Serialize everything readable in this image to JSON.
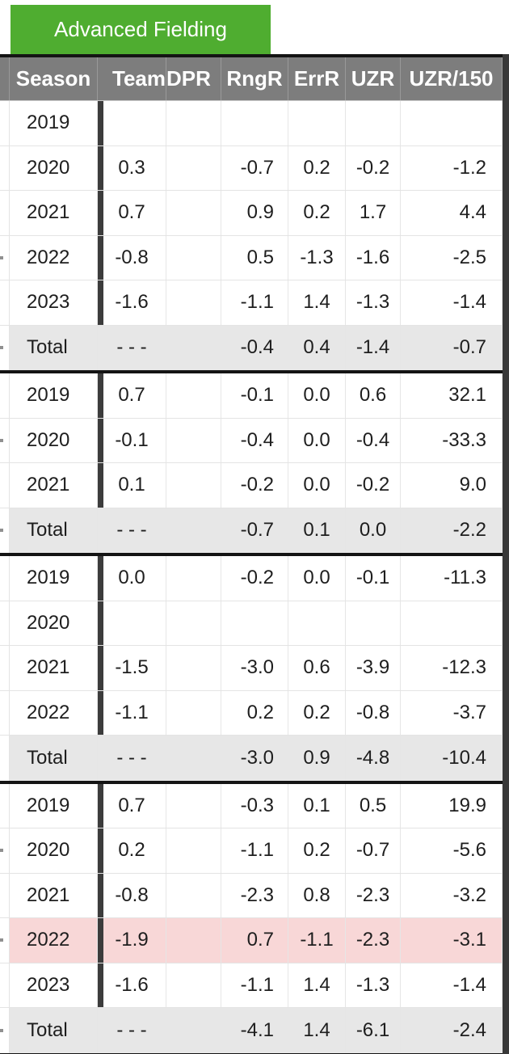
{
  "tab": {
    "label": "Advanced Fielding"
  },
  "table": {
    "columns": [
      {
        "key": "sliver",
        "label": ""
      },
      {
        "key": "season",
        "label": "Season"
      },
      {
        "key": "team",
        "label": "Team"
      },
      {
        "key": "dpr",
        "label": "DPR"
      },
      {
        "key": "rngr",
        "label": "RngR"
      },
      {
        "key": "errr",
        "label": "ErrR"
      },
      {
        "key": "uzr",
        "label": "UZR"
      },
      {
        "key": "uzr150",
        "label": "UZR/150"
      }
    ],
    "colors": {
      "tab_green": "#4fad30",
      "header_gray": "#7d7d7d",
      "total_row_gray": "#e7e7e7",
      "highlight_pink": "#f8d7d7",
      "team_bar_dark": "#3c3c3c",
      "section_border_black": "#141414",
      "right_strip_dark": "#383838"
    },
    "groups": [
      {
        "rows": [
          {
            "season": "2019",
            "team": "",
            "dpr": "",
            "rngr": "",
            "errr": "",
            "uzr": "",
            "uzr150": ""
          },
          {
            "season": "2020",
            "team": "0.3",
            "dpr": "",
            "rngr": "-0.7",
            "errr": "0.2",
            "uzr": "-0.2",
            "uzr150": "-1.2"
          },
          {
            "season": "2021",
            "team": "0.7",
            "dpr": "",
            "rngr": "0.9",
            "errr": "0.2",
            "uzr": "1.7",
            "uzr150": "4.4"
          },
          {
            "season": "2022",
            "team": "-0.8",
            "dpr": "",
            "rngr": "0.5",
            "errr": "-1.3",
            "uzr": "-1.6",
            "uzr150": "-2.5",
            "frag": true
          },
          {
            "season": "2023",
            "team": "-1.6",
            "dpr": "",
            "rngr": "-1.1",
            "errr": "1.4",
            "uzr": "-1.3",
            "uzr150": "-1.4"
          },
          {
            "season": "Total",
            "team": "- - -",
            "dpr": "",
            "rngr": "-0.4",
            "errr": "0.4",
            "uzr": "-1.4",
            "uzr150": "-0.7",
            "total": true,
            "frag": true
          }
        ]
      },
      {
        "rows": [
          {
            "season": "2019",
            "team": "0.7",
            "dpr": "",
            "rngr": "-0.1",
            "errr": "0.0",
            "uzr": "0.6",
            "uzr150": "32.1"
          },
          {
            "season": "2020",
            "team": "-0.1",
            "dpr": "",
            "rngr": "-0.4",
            "errr": "0.0",
            "uzr": "-0.4",
            "uzr150": "-33.3",
            "frag": true
          },
          {
            "season": "2021",
            "team": "0.1",
            "dpr": "",
            "rngr": "-0.2",
            "errr": "0.0",
            "uzr": "-0.2",
            "uzr150": "9.0"
          },
          {
            "season": "Total",
            "team": "- - -",
            "dpr": "",
            "rngr": "-0.7",
            "errr": "0.1",
            "uzr": "0.0",
            "uzr150": "-2.2",
            "total": true,
            "frag": true
          }
        ]
      },
      {
        "rows": [
          {
            "season": "2019",
            "team": "0.0",
            "dpr": "",
            "rngr": "-0.2",
            "errr": "0.0",
            "uzr": "-0.1",
            "uzr150": "-11.3"
          },
          {
            "season": "2020",
            "team": "",
            "dpr": "",
            "rngr": "",
            "errr": "",
            "uzr": "",
            "uzr150": ""
          },
          {
            "season": "2021",
            "team": "-1.5",
            "dpr": "",
            "rngr": "-3.0",
            "errr": "0.6",
            "uzr": "-3.9",
            "uzr150": "-12.3"
          },
          {
            "season": "2022",
            "team": "-1.1",
            "dpr": "",
            "rngr": "0.2",
            "errr": "0.2",
            "uzr": "-0.8",
            "uzr150": "-3.7"
          },
          {
            "season": "Total",
            "team": "- - -",
            "dpr": "",
            "rngr": "-3.0",
            "errr": "0.9",
            "uzr": "-4.8",
            "uzr150": "-10.4",
            "total": true
          }
        ]
      },
      {
        "rows": [
          {
            "season": "2019",
            "team": "0.7",
            "dpr": "",
            "rngr": "-0.3",
            "errr": "0.1",
            "uzr": "0.5",
            "uzr150": "19.9"
          },
          {
            "season": "2020",
            "team": "0.2",
            "dpr": "",
            "rngr": "-1.1",
            "errr": "0.2",
            "uzr": "-0.7",
            "uzr150": "-5.6",
            "frag": true
          },
          {
            "season": "2021",
            "team": "-0.8",
            "dpr": "",
            "rngr": "-2.3",
            "errr": "0.8",
            "uzr": "-2.3",
            "uzr150": "-3.2"
          },
          {
            "season": "2022",
            "team": "-1.9",
            "dpr": "",
            "rngr": "0.7",
            "errr": "-1.1",
            "uzr": "-2.3",
            "uzr150": "-3.1",
            "highlight": true,
            "frag": true
          },
          {
            "season": "2023",
            "team": "-1.6",
            "dpr": "",
            "rngr": "-1.1",
            "errr": "1.4",
            "uzr": "-1.3",
            "uzr150": "-1.4"
          },
          {
            "season": "Total",
            "team": "- - -",
            "dpr": "",
            "rngr": "-4.1",
            "errr": "1.4",
            "uzr": "-6.1",
            "uzr150": "-2.4",
            "total": true,
            "frag": true
          }
        ]
      }
    ]
  }
}
